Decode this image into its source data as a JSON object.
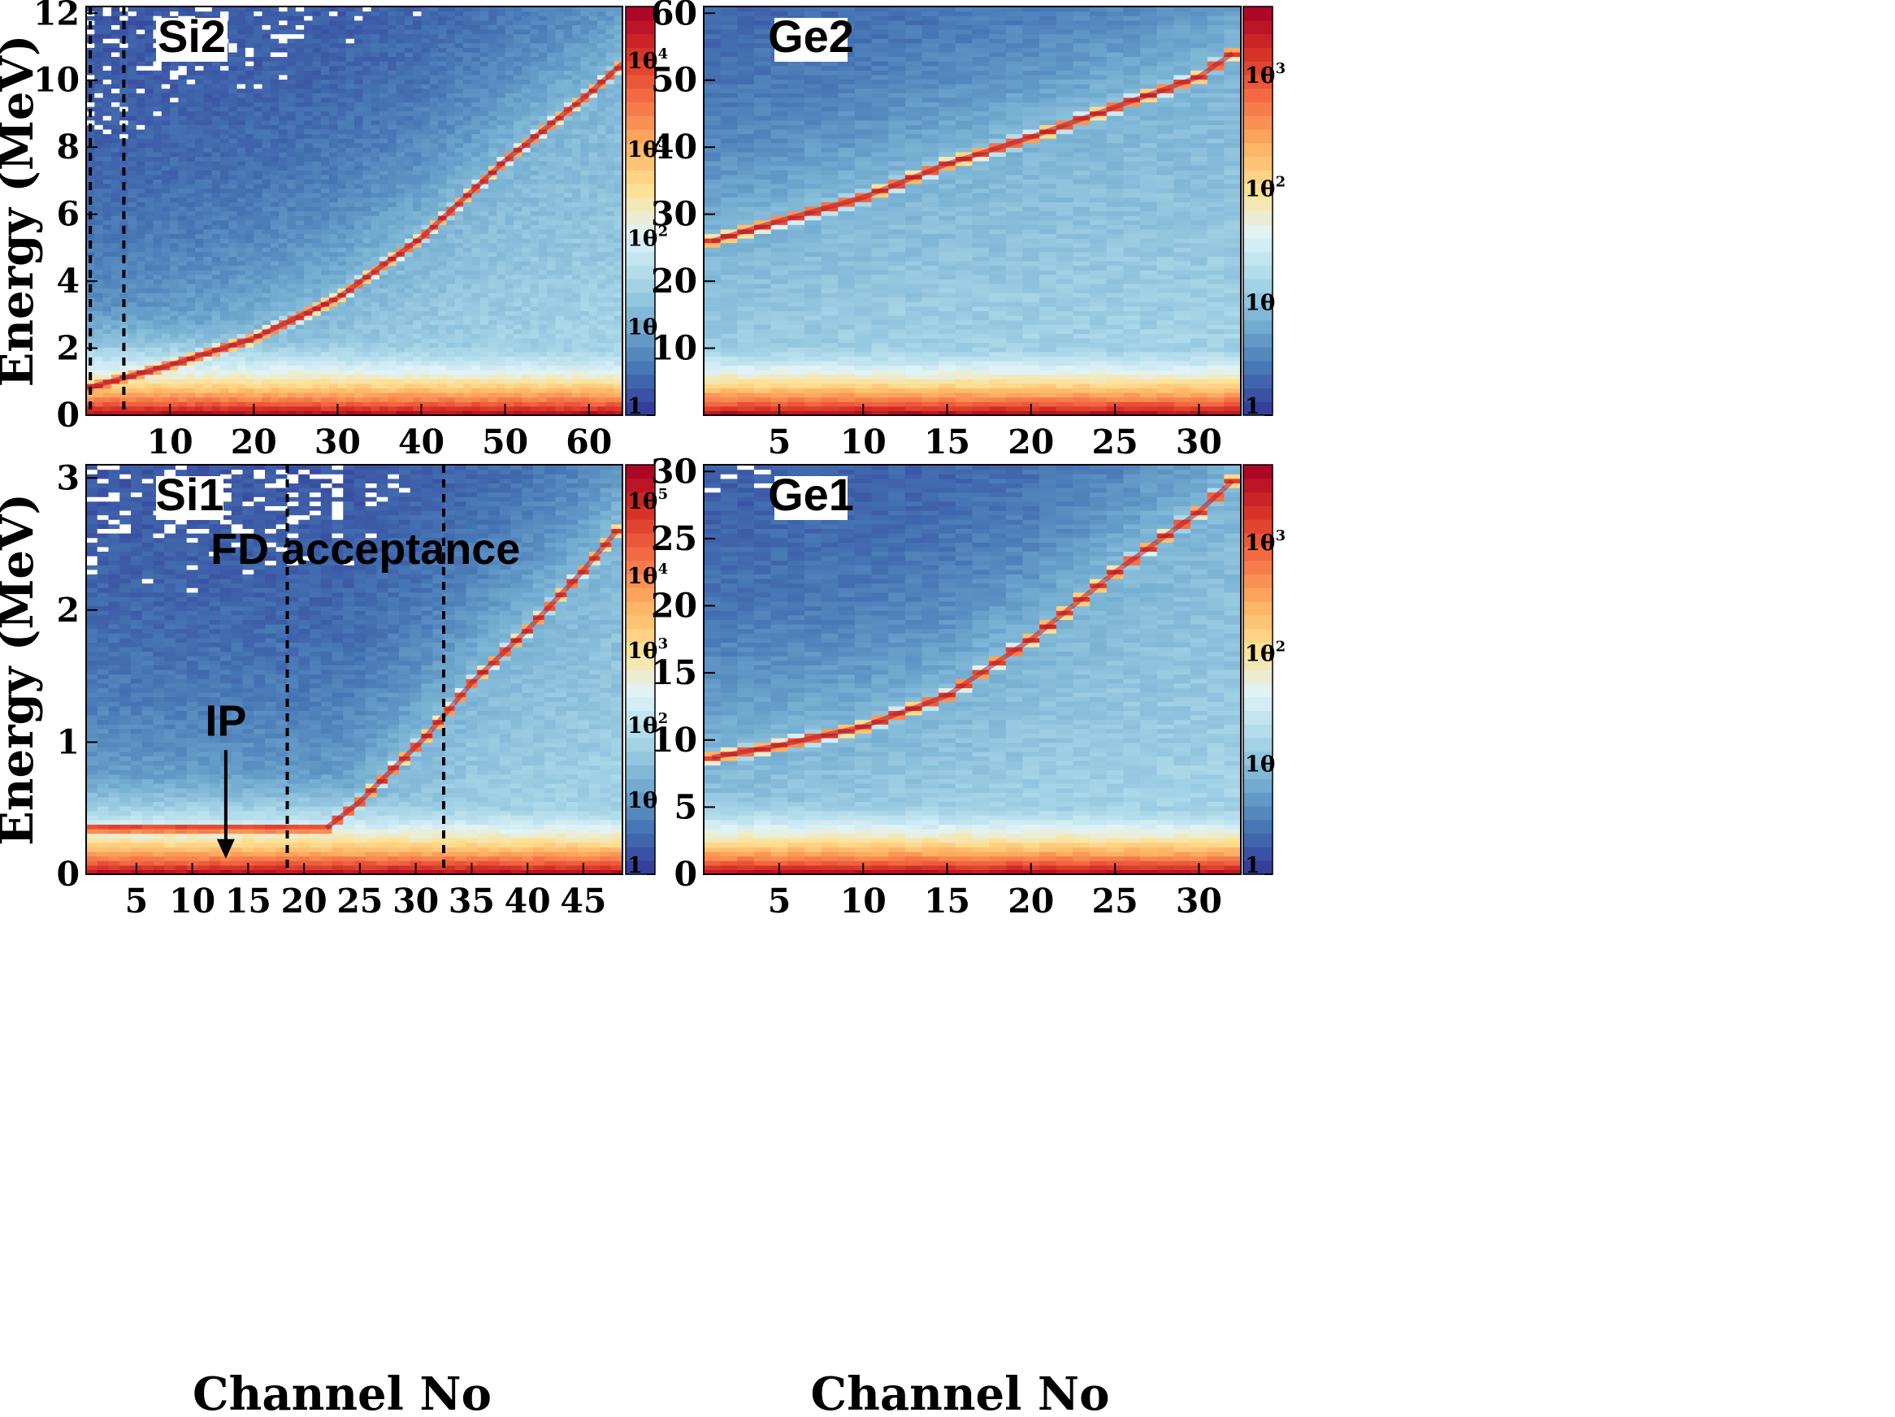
{
  "chart_data": [
    {
      "type": "heatmap",
      "panel": "Si2",
      "title": "Si2",
      "xlabel": "",
      "ylabel": "Energy (MeV)",
      "xlim": [
        0,
        64
      ],
      "ylim": [
        0,
        12.2
      ],
      "xticks": [
        10,
        20,
        30,
        40,
        50,
        60
      ],
      "yticks": [
        0,
        2,
        4,
        6,
        8,
        10,
        12
      ],
      "log_color_scale": true,
      "zlim": [
        1,
        40000
      ],
      "colorbar_ticks": [
        {
          "value": 1,
          "base": "1",
          "exp": ""
        },
        {
          "value": 10,
          "base": "10",
          "exp": ""
        },
        {
          "value": 100,
          "base": "10",
          "exp": "2"
        },
        {
          "value": 1000,
          "base": "10",
          "exp": "3"
        },
        {
          "value": 10000,
          "base": "10",
          "exp": "4"
        }
      ],
      "ridge_energy_vs_channel": [
        [
          0,
          0.8
        ],
        [
          10,
          1.5
        ],
        [
          20,
          2.3
        ],
        [
          30,
          3.5
        ],
        [
          40,
          5.3
        ],
        [
          50,
          7.6
        ],
        [
          60,
          9.6
        ],
        [
          64,
          10.5
        ]
      ],
      "dashed_lines_x": [
        0.5,
        4.5
      ],
      "annotations": []
    },
    {
      "type": "heatmap",
      "panel": "Ge2",
      "title": "Ge2",
      "xlabel": "",
      "ylabel": "",
      "xlim": [
        0.5,
        32.5
      ],
      "ylim": [
        0,
        61
      ],
      "xticks": [
        5,
        10,
        15,
        20,
        25,
        30
      ],
      "yticks": [
        10,
        20,
        30,
        40,
        50,
        60
      ],
      "log_color_scale": true,
      "zlim": [
        1,
        4000
      ],
      "colorbar_ticks": [
        {
          "value": 1,
          "base": "1",
          "exp": ""
        },
        {
          "value": 10,
          "base": "10",
          "exp": ""
        },
        {
          "value": 100,
          "base": "10",
          "exp": "2"
        },
        {
          "value": 1000,
          "base": "10",
          "exp": "3"
        }
      ],
      "ridge_energy_vs_channel": [
        [
          1,
          26
        ],
        [
          5,
          29
        ],
        [
          10,
          32.5
        ],
        [
          15,
          37.5
        ],
        [
          20,
          41.5
        ],
        [
          25,
          46
        ],
        [
          30,
          50.5
        ],
        [
          32,
          54
        ]
      ],
      "dashed_lines_x": [],
      "annotations": []
    },
    {
      "type": "heatmap",
      "panel": "Si1",
      "title": "Si1",
      "xlabel": "Channel No",
      "ylabel": "Energy (MeV)",
      "xlim": [
        0.5,
        48.5
      ],
      "ylim": [
        0,
        3.1
      ],
      "xticks": [
        5,
        10,
        15,
        20,
        25,
        30,
        35,
        40,
        45
      ],
      "yticks": [
        0,
        1,
        2,
        3
      ],
      "log_color_scale": true,
      "zlim": [
        1,
        300000
      ],
      "colorbar_ticks": [
        {
          "value": 1,
          "base": "1",
          "exp": ""
        },
        {
          "value": 10,
          "base": "10",
          "exp": ""
        },
        {
          "value": 100,
          "base": "10",
          "exp": "2"
        },
        {
          "value": 1000,
          "base": "10",
          "exp": "3"
        },
        {
          "value": 10000,
          "base": "10",
          "exp": "4"
        },
        {
          "value": 100000,
          "base": "10",
          "exp": "5"
        }
      ],
      "ridge_energy_vs_channel": [
        [
          22,
          0.35
        ],
        [
          25,
          0.55
        ],
        [
          28,
          0.8
        ],
        [
          31,
          1.05
        ],
        [
          35,
          1.45
        ],
        [
          40,
          1.85
        ],
        [
          45,
          2.3
        ],
        [
          48,
          2.6
        ]
      ],
      "dashed_lines_x": [
        18.5,
        32.5
      ],
      "annotations": [
        {
          "text": "FD acceptance",
          "x": 25.5,
          "y": 2.35
        },
        {
          "text": "IP",
          "x": 13,
          "y": 1.05
        }
      ]
    },
    {
      "type": "heatmap",
      "panel": "Ge1",
      "title": "Ge1",
      "xlabel": "Channel No",
      "ylabel": "",
      "xlim": [
        0.5,
        32.5
      ],
      "ylim": [
        0,
        30.5
      ],
      "xticks": [
        5,
        10,
        15,
        20,
        25,
        30
      ],
      "yticks": [
        0,
        5,
        10,
        15,
        20,
        25,
        30
      ],
      "log_color_scale": true,
      "zlim": [
        1,
        5000
      ],
      "colorbar_ticks": [
        {
          "value": 1,
          "base": "1",
          "exp": ""
        },
        {
          "value": 10,
          "base": "10",
          "exp": ""
        },
        {
          "value": 100,
          "base": "10",
          "exp": "2"
        },
        {
          "value": 1000,
          "base": "10",
          "exp": "3"
        }
      ],
      "ridge_energy_vs_channel": [
        [
          1,
          8.7
        ],
        [
          5,
          9.6
        ],
        [
          10,
          11
        ],
        [
          15,
          13.3
        ],
        [
          20,
          17.5
        ],
        [
          25,
          22.5
        ],
        [
          30,
          27
        ],
        [
          32,
          29.3
        ]
      ],
      "dashed_lines_x": [],
      "annotations": []
    }
  ],
  "palette": [
    "#313695",
    "#4575b4",
    "#74add1",
    "#abd9e9",
    "#e0f3f8",
    "#fee090",
    "#fdae61",
    "#f46d43",
    "#d73027",
    "#a50026"
  ]
}
